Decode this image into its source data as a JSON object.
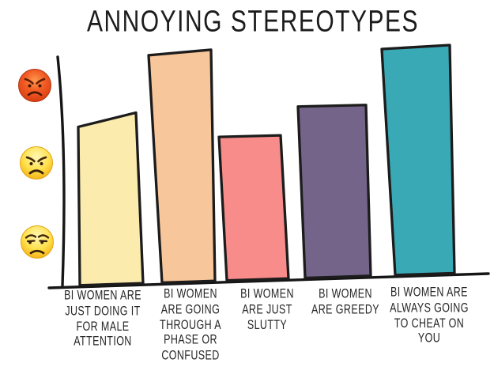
{
  "chart_data": {
    "type": "bar",
    "title": "ANNOYING STEREOTYPES",
    "categories": [
      "BI WOMEN ARE JUST DOING IT FOR MALE ATTENTION",
      "BI WOMEN ARE GOING THROUGH A PHASE OR CONFUSED",
      "BI WOMEN ARE JUST SLUTTY",
      "BI WOMEN ARE GREEDY",
      "BI WOMEN ARE ALWAYS GOING TO CHEAT ON YOU"
    ],
    "category_lines": [
      [
        "BI WOMEN ARE",
        "JUST DOING IT",
        "FOR MALE",
        "ATTENTION"
      ],
      [
        "BI WOMEN",
        "ARE GOING",
        "THROUGH A",
        "PHASE OR",
        "CONFUSED"
      ],
      [
        "BI WOMEN",
        "ARE JUST",
        "SLUTTY"
      ],
      [
        "BI WOMEN",
        "ARE GREEDY"
      ],
      [
        "BI WOMEN ARE",
        "ALWAYS GOING",
        "TO CHEAT ON",
        "YOU"
      ]
    ],
    "values": [
      0.69,
      0.98,
      0.62,
      0.75,
      1.0
    ],
    "value_meaning": "annoyance level on unlabeled emoji axis, fraction of axis height",
    "bar_colors": [
      "#FBEBAD",
      "#F8C69B",
      "#F78C8A",
      "#74648A",
      "#3AA9B6"
    ],
    "outline_color": "#1c1c1c",
    "xlabel": "",
    "ylabel": "",
    "grid": false,
    "legend": null,
    "y_axis_icons_top_to_bottom": [
      {
        "name": "pouting-face-icon",
        "emoji": "😡"
      },
      {
        "name": "angry-face-icon",
        "emoji": "😠"
      },
      {
        "name": "unamused-face-icon",
        "emoji": "😒"
      }
    ]
  }
}
